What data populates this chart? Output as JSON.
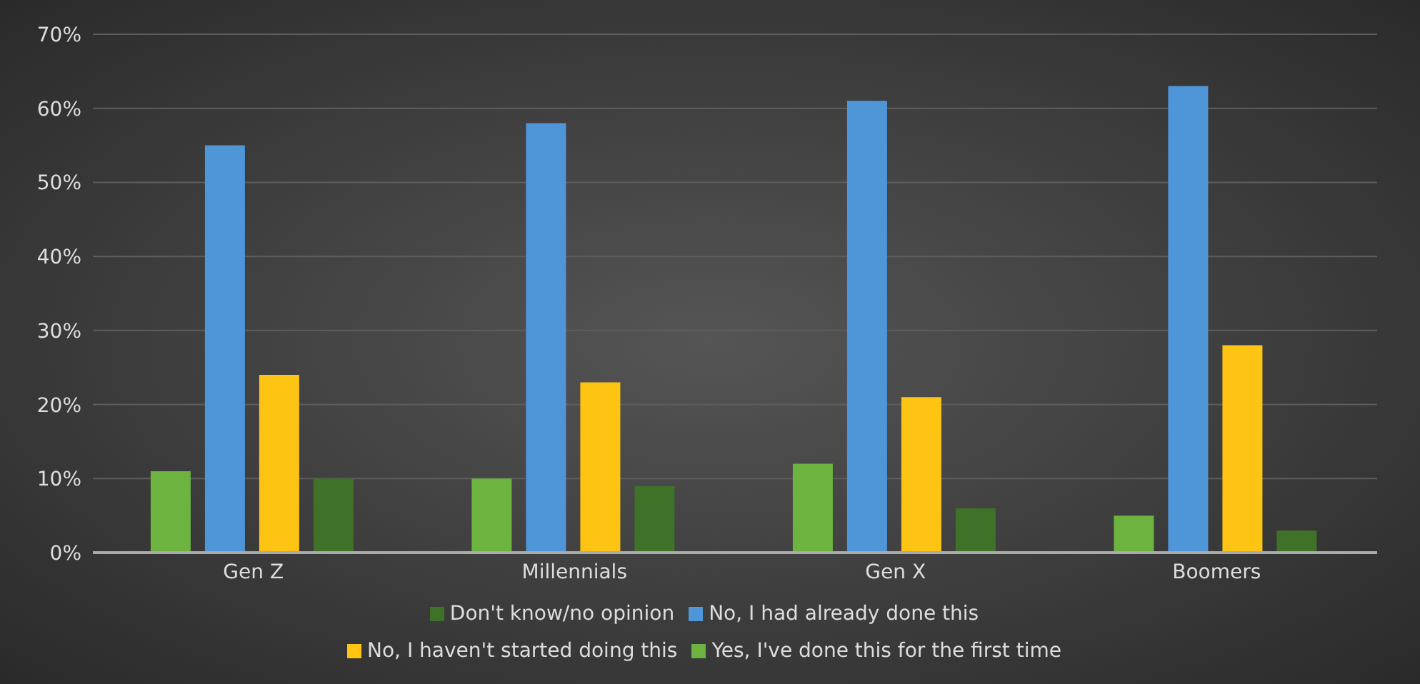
{
  "chart_data": {
    "type": "bar",
    "categories": [
      "Gen Z",
      "Millennials",
      "Gen X",
      "Boomers"
    ],
    "series": [
      {
        "name": "Yes, I've done this for the first time",
        "color": "#6db33f",
        "values": [
          11,
          10,
          12,
          5
        ]
      },
      {
        "name": "No, I had already done this",
        "color": "#4f96d9",
        "values": [
          55,
          58,
          61,
          63
        ]
      },
      {
        "name": "No, I haven't started doing this",
        "color": "#fdc414",
        "values": [
          24,
          23,
          21,
          28
        ]
      },
      {
        "name": "Don't know/no opinion",
        "color": "#3f7128",
        "values": [
          10,
          9,
          6,
          3
        ]
      }
    ],
    "ylim": [
      0,
      70
    ],
    "yticks": [
      {
        "value": 0,
        "label": "0%"
      },
      {
        "value": 10,
        "label": "10%"
      },
      {
        "value": 20,
        "label": "20%"
      },
      {
        "value": 30,
        "label": "30%"
      },
      {
        "value": 40,
        "label": "40%"
      },
      {
        "value": 50,
        "label": "50%"
      },
      {
        "value": 60,
        "label": "60%"
      },
      {
        "value": 70,
        "label": "70%"
      }
    ],
    "grid": "y",
    "legend": "bottom"
  }
}
